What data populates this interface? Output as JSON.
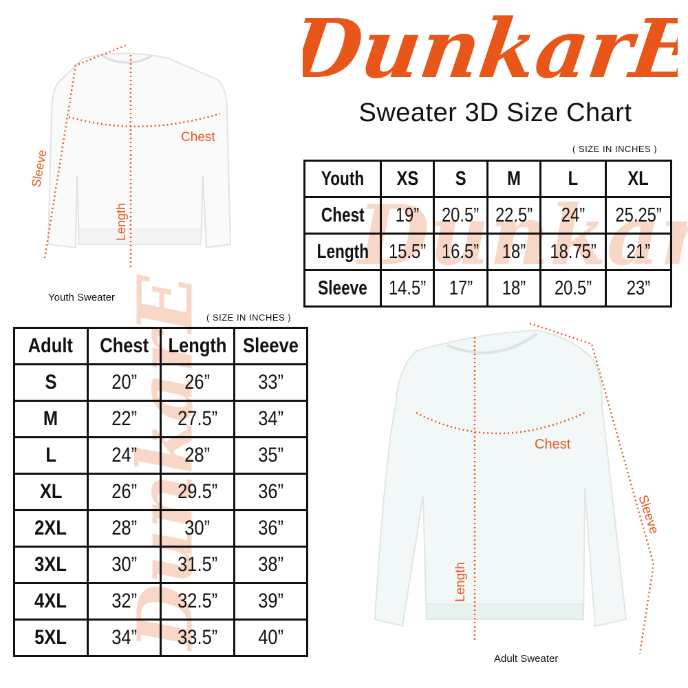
{
  "brand": {
    "logo_text": "DunkarE",
    "color": "#e8561a"
  },
  "title": "Sweater 3D Size Chart",
  "youth": {
    "units_note": "( SIZE IN INCHES )",
    "caption": "Youth Sweater",
    "diagram_labels": {
      "chest": "Chest",
      "length": "Length",
      "sleeve": "Sleeve"
    },
    "header": [
      "Youth",
      "XS",
      "S",
      "M",
      "L",
      "XL"
    ],
    "rows": [
      [
        "Chest",
        "19”",
        "20.5”",
        "22.5”",
        "24”",
        "25.25”"
      ],
      [
        "Length",
        "15.5”",
        "16.5”",
        "18”",
        "18.75”",
        "21”"
      ],
      [
        "Sleeve",
        "14.5”",
        "17”",
        "18”",
        "20.5”",
        "23”"
      ]
    ]
  },
  "adult": {
    "units_note": "( SIZE IN INCHES )",
    "caption": "Adult Sweater",
    "diagram_labels": {
      "chest": "Chest",
      "length": "Length",
      "sleeve": "Sleeve"
    },
    "header": [
      "Adult",
      "Chest",
      "Length",
      "Sleeve"
    ],
    "rows": [
      [
        "S",
        "20”",
        "26”",
        "33”"
      ],
      [
        "M",
        "22”",
        "27.5”",
        "34”"
      ],
      [
        "L",
        "24”",
        "28”",
        "35”"
      ],
      [
        "XL",
        "26”",
        "29.5”",
        "36”"
      ],
      [
        "2XL",
        "28”",
        "30”",
        "36”"
      ],
      [
        "3XL",
        "30”",
        "31.5”",
        "38”"
      ],
      [
        "4XL",
        "32”",
        "32.5”",
        "39”"
      ],
      [
        "5XL",
        "34”",
        "33.5”",
        "40”"
      ]
    ]
  }
}
